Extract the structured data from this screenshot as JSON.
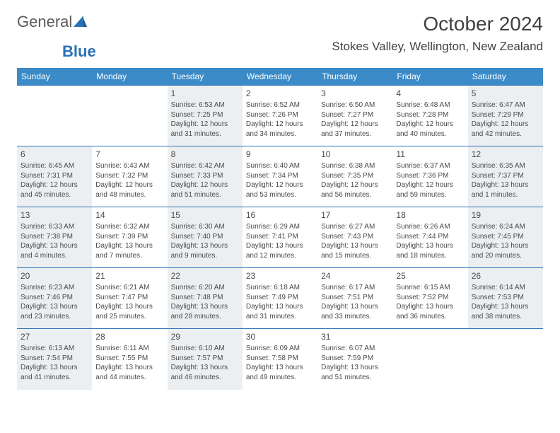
{
  "logo": {
    "word1": "General",
    "word2": "Blue"
  },
  "header": {
    "title": "October 2024",
    "location": "Stokes Valley, Wellington, New Zealand"
  },
  "style": {
    "header_bg": "#3b8bc8",
    "header_text": "#ffffff",
    "row_border": "#2a72b5",
    "shade_bg": "#eceff1",
    "page_bg": "#ffffff",
    "text_color": "#4a4a4a",
    "daynum_fontsize": 12,
    "cell_fontsize": 10,
    "header_fontsize": 12,
    "title_fontsize": 28,
    "location_fontsize": 17
  },
  "daysOfWeek": [
    "Sunday",
    "Monday",
    "Tuesday",
    "Wednesday",
    "Thursday",
    "Friday",
    "Saturday"
  ],
  "weeks": [
    [
      {
        "empty": true
      },
      {
        "empty": true
      },
      {
        "n": "1",
        "sunrise": "6:53 AM",
        "sunset": "7:25 PM",
        "dayh": "12",
        "daym": "31",
        "shade": true
      },
      {
        "n": "2",
        "sunrise": "6:52 AM",
        "sunset": "7:26 PM",
        "dayh": "12",
        "daym": "34"
      },
      {
        "n": "3",
        "sunrise": "6:50 AM",
        "sunset": "7:27 PM",
        "dayh": "12",
        "daym": "37"
      },
      {
        "n": "4",
        "sunrise": "6:48 AM",
        "sunset": "7:28 PM",
        "dayh": "12",
        "daym": "40"
      },
      {
        "n": "5",
        "sunrise": "6:47 AM",
        "sunset": "7:29 PM",
        "dayh": "12",
        "daym": "42",
        "shade": true
      }
    ],
    [
      {
        "n": "6",
        "sunrise": "6:45 AM",
        "sunset": "7:31 PM",
        "dayh": "12",
        "daym": "45",
        "shade": true
      },
      {
        "n": "7",
        "sunrise": "6:43 AM",
        "sunset": "7:32 PM",
        "dayh": "12",
        "daym": "48"
      },
      {
        "n": "8",
        "sunrise": "6:42 AM",
        "sunset": "7:33 PM",
        "dayh": "12",
        "daym": "51",
        "shade": true
      },
      {
        "n": "9",
        "sunrise": "6:40 AM",
        "sunset": "7:34 PM",
        "dayh": "12",
        "daym": "53"
      },
      {
        "n": "10",
        "sunrise": "6:38 AM",
        "sunset": "7:35 PM",
        "dayh": "12",
        "daym": "56"
      },
      {
        "n": "11",
        "sunrise": "6:37 AM",
        "sunset": "7:36 PM",
        "dayh": "12",
        "daym": "59"
      },
      {
        "n": "12",
        "sunrise": "6:35 AM",
        "sunset": "7:37 PM",
        "dayh": "13",
        "daym": "1",
        "shade": true
      }
    ],
    [
      {
        "n": "13",
        "sunrise": "6:33 AM",
        "sunset": "7:38 PM",
        "dayh": "13",
        "daym": "4",
        "shade": true
      },
      {
        "n": "14",
        "sunrise": "6:32 AM",
        "sunset": "7:39 PM",
        "dayh": "13",
        "daym": "7"
      },
      {
        "n": "15",
        "sunrise": "6:30 AM",
        "sunset": "7:40 PM",
        "dayh": "13",
        "daym": "9",
        "shade": true
      },
      {
        "n": "16",
        "sunrise": "6:29 AM",
        "sunset": "7:41 PM",
        "dayh": "13",
        "daym": "12"
      },
      {
        "n": "17",
        "sunrise": "6:27 AM",
        "sunset": "7:43 PM",
        "dayh": "13",
        "daym": "15"
      },
      {
        "n": "18",
        "sunrise": "6:26 AM",
        "sunset": "7:44 PM",
        "dayh": "13",
        "daym": "18"
      },
      {
        "n": "19",
        "sunrise": "6:24 AM",
        "sunset": "7:45 PM",
        "dayh": "13",
        "daym": "20",
        "shade": true
      }
    ],
    [
      {
        "n": "20",
        "sunrise": "6:23 AM",
        "sunset": "7:46 PM",
        "dayh": "13",
        "daym": "23",
        "shade": true
      },
      {
        "n": "21",
        "sunrise": "6:21 AM",
        "sunset": "7:47 PM",
        "dayh": "13",
        "daym": "25"
      },
      {
        "n": "22",
        "sunrise": "6:20 AM",
        "sunset": "7:48 PM",
        "dayh": "13",
        "daym": "28",
        "shade": true
      },
      {
        "n": "23",
        "sunrise": "6:18 AM",
        "sunset": "7:49 PM",
        "dayh": "13",
        "daym": "31"
      },
      {
        "n": "24",
        "sunrise": "6:17 AM",
        "sunset": "7:51 PM",
        "dayh": "13",
        "daym": "33"
      },
      {
        "n": "25",
        "sunrise": "6:15 AM",
        "sunset": "7:52 PM",
        "dayh": "13",
        "daym": "36"
      },
      {
        "n": "26",
        "sunrise": "6:14 AM",
        "sunset": "7:53 PM",
        "dayh": "13",
        "daym": "38",
        "shade": true
      }
    ],
    [
      {
        "n": "27",
        "sunrise": "6:13 AM",
        "sunset": "7:54 PM",
        "dayh": "13",
        "daym": "41",
        "shade": true
      },
      {
        "n": "28",
        "sunrise": "6:11 AM",
        "sunset": "7:55 PM",
        "dayh": "13",
        "daym": "44"
      },
      {
        "n": "29",
        "sunrise": "6:10 AM",
        "sunset": "7:57 PM",
        "dayh": "13",
        "daym": "46",
        "shade": true
      },
      {
        "n": "30",
        "sunrise": "6:09 AM",
        "sunset": "7:58 PM",
        "dayh": "13",
        "daym": "49"
      },
      {
        "n": "31",
        "sunrise": "6:07 AM",
        "sunset": "7:59 PM",
        "dayh": "13",
        "daym": "51"
      },
      {
        "empty": true
      },
      {
        "empty": true
      }
    ]
  ]
}
